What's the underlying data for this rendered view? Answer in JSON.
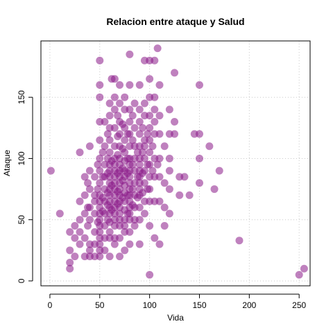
{
  "chart_data": {
    "type": "scatter",
    "title": "Relacion entre ataque y Salud",
    "xlabel": "Vida",
    "ylabel": "Ataque",
    "xlim": [
      -9,
      261
    ],
    "ylim": [
      -4,
      196
    ],
    "xticks": [
      0,
      50,
      100,
      150,
      200,
      250
    ],
    "yticks": [
      0,
      50,
      100,
      150
    ],
    "grid": true,
    "legend": "none",
    "point_color": "#8B1A89",
    "point_opacity": 0.55,
    "points": [
      {
        "x": 1,
        "y": 90
      },
      {
        "x": 10,
        "y": 55
      },
      {
        "x": 20,
        "y": 10
      },
      {
        "x": 20,
        "y": 15
      },
      {
        "x": 20,
        "y": 25
      },
      {
        "x": 20,
        "y": 40
      },
      {
        "x": 25,
        "y": 35
      },
      {
        "x": 25,
        "y": 45
      },
      {
        "x": 25,
        "y": 20
      },
      {
        "x": 30,
        "y": 105
      },
      {
        "x": 30,
        "y": 30
      },
      {
        "x": 30,
        "y": 40
      },
      {
        "x": 30,
        "y": 50
      },
      {
        "x": 30,
        "y": 65
      },
      {
        "x": 35,
        "y": 85
      },
      {
        "x": 35,
        "y": 70
      },
      {
        "x": 35,
        "y": 55
      },
      {
        "x": 35,
        "y": 35
      },
      {
        "x": 35,
        "y": 20
      },
      {
        "x": 38,
        "y": 60
      },
      {
        "x": 38,
        "y": 45
      },
      {
        "x": 38,
        "y": 80
      },
      {
        "x": 40,
        "y": 110
      },
      {
        "x": 40,
        "y": 90
      },
      {
        "x": 40,
        "y": 75
      },
      {
        "x": 40,
        "y": 60
      },
      {
        "x": 40,
        "y": 50
      },
      {
        "x": 40,
        "y": 30
      },
      {
        "x": 40,
        "y": 25
      },
      {
        "x": 40,
        "y": 20
      },
      {
        "x": 45,
        "y": 85
      },
      {
        "x": 45,
        "y": 70
      },
      {
        "x": 45,
        "y": 65
      },
      {
        "x": 45,
        "y": 55
      },
      {
        "x": 45,
        "y": 40
      },
      {
        "x": 45,
        "y": 30
      },
      {
        "x": 45,
        "y": 20
      },
      {
        "x": 48,
        "y": 95
      },
      {
        "x": 48,
        "y": 75
      },
      {
        "x": 48,
        "y": 48
      },
      {
        "x": 50,
        "y": 180
      },
      {
        "x": 50,
        "y": 160
      },
      {
        "x": 50,
        "y": 150
      },
      {
        "x": 50,
        "y": 130
      },
      {
        "x": 50,
        "y": 115
      },
      {
        "x": 50,
        "y": 100
      },
      {
        "x": 50,
        "y": 90
      },
      {
        "x": 50,
        "y": 80
      },
      {
        "x": 50,
        "y": 70
      },
      {
        "x": 50,
        "y": 65
      },
      {
        "x": 50,
        "y": 60
      },
      {
        "x": 50,
        "y": 55
      },
      {
        "x": 50,
        "y": 50
      },
      {
        "x": 50,
        "y": 45
      },
      {
        "x": 50,
        "y": 40
      },
      {
        "x": 50,
        "y": 35
      },
      {
        "x": 50,
        "y": 30
      },
      {
        "x": 50,
        "y": 25
      },
      {
        "x": 50,
        "y": 20
      },
      {
        "x": 53,
        "y": 85
      },
      {
        "x": 53,
        "y": 68
      },
      {
        "x": 53,
        "y": 57
      },
      {
        "x": 53,
        "y": 105
      },
      {
        "x": 55,
        "y": 130
      },
      {
        "x": 55,
        "y": 110
      },
      {
        "x": 55,
        "y": 95
      },
      {
        "x": 55,
        "y": 85
      },
      {
        "x": 55,
        "y": 75
      },
      {
        "x": 55,
        "y": 65
      },
      {
        "x": 55,
        "y": 55
      },
      {
        "x": 55,
        "y": 45
      },
      {
        "x": 55,
        "y": 35
      },
      {
        "x": 55,
        "y": 25
      },
      {
        "x": 58,
        "y": 120
      },
      {
        "x": 58,
        "y": 100
      },
      {
        "x": 58,
        "y": 88
      },
      {
        "x": 58,
        "y": 72
      },
      {
        "x": 58,
        "y": 62
      },
      {
        "x": 58,
        "y": 50
      },
      {
        "x": 60,
        "y": 145
      },
      {
        "x": 60,
        "y": 135
      },
      {
        "x": 60,
        "y": 125
      },
      {
        "x": 60,
        "y": 115
      },
      {
        "x": 60,
        "y": 105
      },
      {
        "x": 60,
        "y": 95
      },
      {
        "x": 60,
        "y": 90
      },
      {
        "x": 60,
        "y": 85
      },
      {
        "x": 60,
        "y": 80
      },
      {
        "x": 60,
        "y": 75
      },
      {
        "x": 60,
        "y": 70
      },
      {
        "x": 60,
        "y": 65
      },
      {
        "x": 60,
        "y": 60
      },
      {
        "x": 60,
        "y": 55
      },
      {
        "x": 60,
        "y": 48
      },
      {
        "x": 60,
        "y": 40
      },
      {
        "x": 60,
        "y": 35
      },
      {
        "x": 60,
        "y": 20
      },
      {
        "x": 62,
        "y": 165
      },
      {
        "x": 62,
        "y": 98
      },
      {
        "x": 62,
        "y": 78
      },
      {
        "x": 62,
        "y": 58
      },
      {
        "x": 65,
        "y": 165
      },
      {
        "x": 65,
        "y": 150
      },
      {
        "x": 65,
        "y": 140
      },
      {
        "x": 65,
        "y": 125
      },
      {
        "x": 65,
        "y": 110
      },
      {
        "x": 65,
        "y": 100
      },
      {
        "x": 65,
        "y": 95
      },
      {
        "x": 65,
        "y": 90
      },
      {
        "x": 65,
        "y": 85
      },
      {
        "x": 65,
        "y": 80
      },
      {
        "x": 65,
        "y": 75
      },
      {
        "x": 65,
        "y": 70
      },
      {
        "x": 65,
        "y": 65
      },
      {
        "x": 65,
        "y": 60
      },
      {
        "x": 65,
        "y": 55
      },
      {
        "x": 65,
        "y": 50
      },
      {
        "x": 65,
        "y": 45
      },
      {
        "x": 65,
        "y": 35
      },
      {
        "x": 65,
        "y": 30
      },
      {
        "x": 68,
        "y": 135
      },
      {
        "x": 68,
        "y": 118
      },
      {
        "x": 68,
        "y": 103
      },
      {
        "x": 68,
        "y": 88
      },
      {
        "x": 68,
        "y": 73
      },
      {
        "x": 68,
        "y": 63
      },
      {
        "x": 70,
        "y": 160
      },
      {
        "x": 70,
        "y": 145
      },
      {
        "x": 70,
        "y": 130
      },
      {
        "x": 70,
        "y": 120
      },
      {
        "x": 70,
        "y": 110
      },
      {
        "x": 70,
        "y": 100
      },
      {
        "x": 70,
        "y": 95
      },
      {
        "x": 70,
        "y": 90
      },
      {
        "x": 70,
        "y": 85
      },
      {
        "x": 70,
        "y": 80
      },
      {
        "x": 70,
        "y": 75
      },
      {
        "x": 70,
        "y": 70
      },
      {
        "x": 70,
        "y": 65
      },
      {
        "x": 70,
        "y": 60
      },
      {
        "x": 70,
        "y": 55
      },
      {
        "x": 70,
        "y": 50
      },
      {
        "x": 70,
        "y": 45
      },
      {
        "x": 70,
        "y": 35
      },
      {
        "x": 70,
        "y": 20
      },
      {
        "x": 73,
        "y": 128
      },
      {
        "x": 73,
        "y": 108
      },
      {
        "x": 73,
        "y": 92
      },
      {
        "x": 73,
        "y": 82
      },
      {
        "x": 73,
        "y": 68
      },
      {
        "x": 75,
        "y": 150
      },
      {
        "x": 75,
        "y": 140
      },
      {
        "x": 75,
        "y": 125
      },
      {
        "x": 75,
        "y": 115
      },
      {
        "x": 75,
        "y": 105
      },
      {
        "x": 75,
        "y": 98
      },
      {
        "x": 75,
        "y": 90
      },
      {
        "x": 75,
        "y": 85
      },
      {
        "x": 75,
        "y": 78
      },
      {
        "x": 75,
        "y": 72
      },
      {
        "x": 75,
        "y": 65
      },
      {
        "x": 75,
        "y": 58
      },
      {
        "x": 75,
        "y": 50
      },
      {
        "x": 75,
        "y": 45
      },
      {
        "x": 75,
        "y": 40
      },
      {
        "x": 75,
        "y": 25
      },
      {
        "x": 78,
        "y": 120
      },
      {
        "x": 78,
        "y": 100
      },
      {
        "x": 78,
        "y": 88
      },
      {
        "x": 78,
        "y": 70
      },
      {
        "x": 78,
        "y": 55
      },
      {
        "x": 80,
        "y": 185
      },
      {
        "x": 80,
        "y": 160
      },
      {
        "x": 80,
        "y": 140
      },
      {
        "x": 80,
        "y": 130
      },
      {
        "x": 80,
        "y": 120
      },
      {
        "x": 80,
        "y": 110
      },
      {
        "x": 80,
        "y": 100
      },
      {
        "x": 80,
        "y": 95
      },
      {
        "x": 80,
        "y": 90
      },
      {
        "x": 80,
        "y": 85
      },
      {
        "x": 80,
        "y": 80
      },
      {
        "x": 80,
        "y": 75
      },
      {
        "x": 80,
        "y": 70
      },
      {
        "x": 80,
        "y": 65
      },
      {
        "x": 80,
        "y": 60
      },
      {
        "x": 80,
        "y": 55
      },
      {
        "x": 80,
        "y": 50
      },
      {
        "x": 80,
        "y": 40
      },
      {
        "x": 80,
        "y": 30
      },
      {
        "x": 83,
        "y": 135
      },
      {
        "x": 83,
        "y": 115
      },
      {
        "x": 83,
        "y": 95
      },
      {
        "x": 83,
        "y": 75
      },
      {
        "x": 83,
        "y": 62
      },
      {
        "x": 85,
        "y": 145
      },
      {
        "x": 85,
        "y": 125
      },
      {
        "x": 85,
        "y": 110
      },
      {
        "x": 85,
        "y": 100
      },
      {
        "x": 85,
        "y": 90
      },
      {
        "x": 85,
        "y": 80
      },
      {
        "x": 85,
        "y": 70
      },
      {
        "x": 85,
        "y": 60
      },
      {
        "x": 85,
        "y": 50
      },
      {
        "x": 85,
        "y": 45
      },
      {
        "x": 88,
        "y": 105
      },
      {
        "x": 88,
        "y": 85
      },
      {
        "x": 88,
        "y": 68
      },
      {
        "x": 90,
        "y": 160
      },
      {
        "x": 90,
        "y": 140
      },
      {
        "x": 90,
        "y": 130
      },
      {
        "x": 90,
        "y": 120
      },
      {
        "x": 90,
        "y": 110
      },
      {
        "x": 90,
        "y": 100
      },
      {
        "x": 90,
        "y": 95
      },
      {
        "x": 90,
        "y": 90
      },
      {
        "x": 90,
        "y": 85
      },
      {
        "x": 90,
        "y": 80
      },
      {
        "x": 90,
        "y": 75
      },
      {
        "x": 90,
        "y": 70
      },
      {
        "x": 90,
        "y": 60
      },
      {
        "x": 90,
        "y": 50
      },
      {
        "x": 90,
        "y": 30
      },
      {
        "x": 93,
        "y": 125
      },
      {
        "x": 93,
        "y": 105
      },
      {
        "x": 93,
        "y": 88
      },
      {
        "x": 93,
        "y": 72
      },
      {
        "x": 95,
        "y": 180
      },
      {
        "x": 95,
        "y": 145
      },
      {
        "x": 95,
        "y": 135
      },
      {
        "x": 95,
        "y": 115
      },
      {
        "x": 95,
        "y": 110
      },
      {
        "x": 95,
        "y": 100
      },
      {
        "x": 95,
        "y": 90
      },
      {
        "x": 95,
        "y": 80
      },
      {
        "x": 95,
        "y": 65
      },
      {
        "x": 95,
        "y": 55
      },
      {
        "x": 98,
        "y": 120
      },
      {
        "x": 98,
        "y": 95
      },
      {
        "x": 98,
        "y": 75
      },
      {
        "x": 100,
        "y": 180
      },
      {
        "x": 100,
        "y": 165
      },
      {
        "x": 100,
        "y": 150
      },
      {
        "x": 100,
        "y": 135
      },
      {
        "x": 100,
        "y": 125
      },
      {
        "x": 100,
        "y": 115
      },
      {
        "x": 100,
        "y": 105
      },
      {
        "x": 100,
        "y": 95
      },
      {
        "x": 100,
        "y": 85
      },
      {
        "x": 100,
        "y": 75
      },
      {
        "x": 100,
        "y": 65
      },
      {
        "x": 100,
        "y": 45
      },
      {
        "x": 100,
        "y": 5
      },
      {
        "x": 103,
        "y": 110
      },
      {
        "x": 103,
        "y": 90
      },
      {
        "x": 105,
        "y": 180
      },
      {
        "x": 105,
        "y": 150
      },
      {
        "x": 105,
        "y": 140
      },
      {
        "x": 105,
        "y": 130
      },
      {
        "x": 105,
        "y": 120
      },
      {
        "x": 105,
        "y": 100
      },
      {
        "x": 105,
        "y": 85
      },
      {
        "x": 105,
        "y": 65
      },
      {
        "x": 105,
        "y": 35
      },
      {
        "x": 108,
        "y": 190
      },
      {
        "x": 108,
        "y": 95
      },
      {
        "x": 110,
        "y": 160
      },
      {
        "x": 110,
        "y": 135
      },
      {
        "x": 110,
        "y": 120
      },
      {
        "x": 110,
        "y": 100
      },
      {
        "x": 110,
        "y": 85
      },
      {
        "x": 110,
        "y": 65
      },
      {
        "x": 110,
        "y": 30
      },
      {
        "x": 115,
        "y": 110
      },
      {
        "x": 115,
        "y": 60
      },
      {
        "x": 115,
        "y": 45
      },
      {
        "x": 115,
        "y": 80
      },
      {
        "x": 120,
        "y": 140
      },
      {
        "x": 120,
        "y": 120
      },
      {
        "x": 120,
        "y": 100
      },
      {
        "x": 120,
        "y": 90
      },
      {
        "x": 120,
        "y": 75
      },
      {
        "x": 120,
        "y": 55
      },
      {
        "x": 125,
        "y": 170
      },
      {
        "x": 125,
        "y": 130
      },
      {
        "x": 125,
        "y": 120
      },
      {
        "x": 130,
        "y": 85
      },
      {
        "x": 130,
        "y": 70
      },
      {
        "x": 135,
        "y": 85
      },
      {
        "x": 140,
        "y": 70
      },
      {
        "x": 145,
        "y": 120
      },
      {
        "x": 150,
        "y": 160
      },
      {
        "x": 150,
        "y": 120
      },
      {
        "x": 150,
        "y": 100
      },
      {
        "x": 150,
        "y": 80
      },
      {
        "x": 160,
        "y": 110
      },
      {
        "x": 165,
        "y": 75
      },
      {
        "x": 170,
        "y": 90
      },
      {
        "x": 190,
        "y": 33
      },
      {
        "x": 250,
        "y": 5
      },
      {
        "x": 255,
        "y": 10
      }
    ]
  }
}
